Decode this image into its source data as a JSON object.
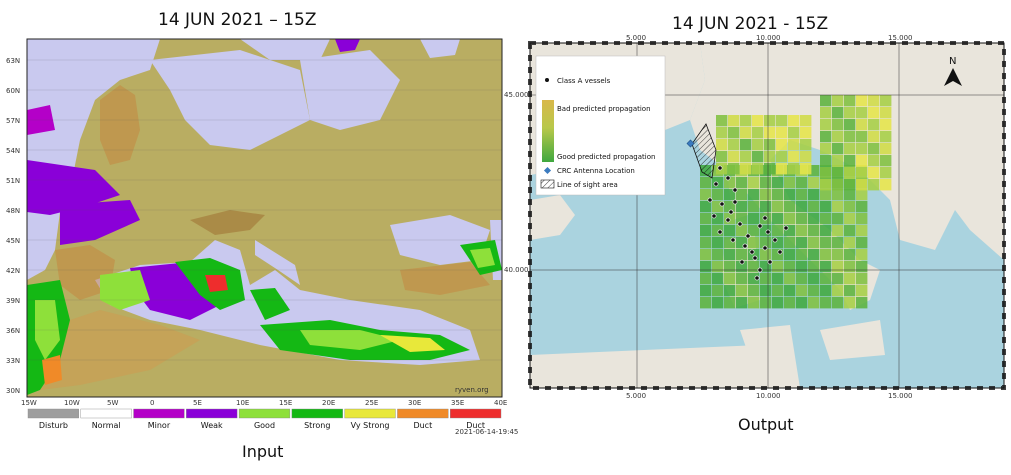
{
  "left_panel": {
    "title": "14 JUN 2021 – 15Z",
    "caption": "Input",
    "lat_ticks": [
      "63N",
      "60N",
      "57N",
      "54N",
      "51N",
      "48N",
      "45N",
      "42N",
      "39N",
      "36N",
      "33N",
      "30N"
    ],
    "lon_ticks": [
      "15W",
      "10W",
      "5W",
      "0",
      "5E",
      "10E",
      "15E",
      "20E",
      "25E",
      "30E",
      "35E",
      "40E"
    ],
    "credit": "ryven.org",
    "timestamp": "2021-06-14-19:45",
    "colorbar": [
      {
        "label": "Disturb",
        "color": "#9e9e9e"
      },
      {
        "label": "Normal",
        "color": "#ffffff"
      },
      {
        "label": "Minor",
        "color": "#b400c8"
      },
      {
        "label": "Weak",
        "color": "#8a00d8"
      },
      {
        "label": "Good",
        "color": "#8ee03a"
      },
      {
        "label": "Strong",
        "color": "#14b814"
      },
      {
        "label": "Vy Strong",
        "color": "#e8e83a"
      },
      {
        "label": "Duct",
        "color": "#f08a28"
      },
      {
        "label": "Duct",
        "color": "#ee2d2d"
      }
    ]
  },
  "right_panel": {
    "title": "14 JUN 2021 - 15Z",
    "caption": "Output",
    "lon_ticks": [
      "5.000",
      "10.000",
      "15.000"
    ],
    "lat_ticks": [
      "45.000",
      "40.000"
    ],
    "north_label": "N",
    "legend": {
      "vessels": "Class A vessels",
      "bad": "Bad predicted propagation",
      "good": "Good predicted propagation",
      "antenna": "CRC Antenna Location",
      "los": "Line of sight area"
    },
    "colors": {
      "sea": "#aad3df",
      "land": "#e9e5dc",
      "good": "#3fa83f",
      "bad": "#e5e54a",
      "antenna": "#3b7bbf"
    }
  }
}
